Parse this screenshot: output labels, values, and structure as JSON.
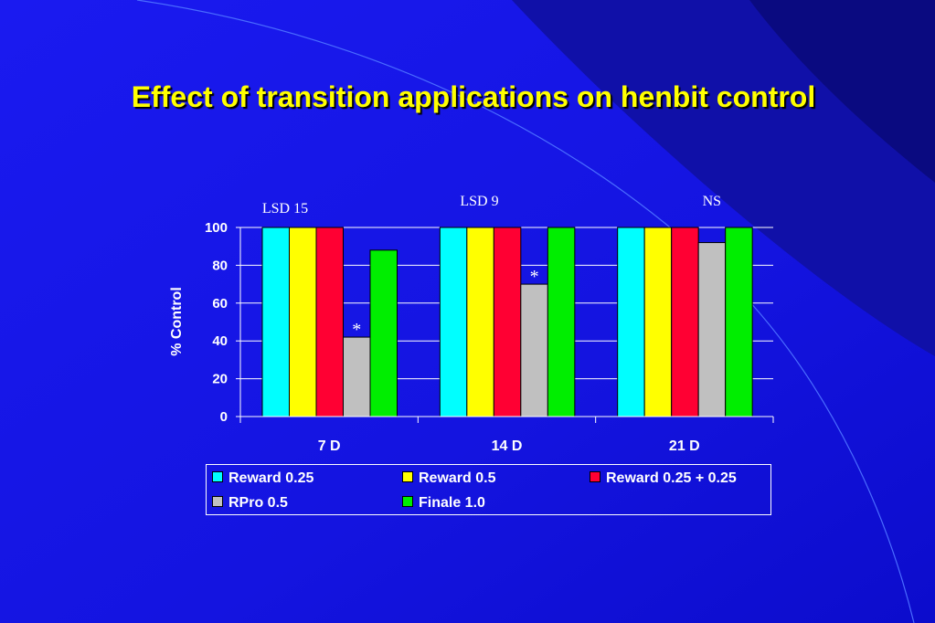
{
  "slide": {
    "title": "Effect of transition applications on henbit control"
  },
  "chart_data": {
    "type": "bar",
    "categories": [
      "7 D",
      "14 D",
      "21 D"
    ],
    "series": [
      {
        "name": "Reward 0.25",
        "color": "#00ffff",
        "values": [
          100,
          100,
          100
        ]
      },
      {
        "name": "Reward 0.5",
        "color": "#ffff00",
        "values": [
          100,
          100,
          100
        ]
      },
      {
        "name": "Reward 0.25 + 0.25",
        "color": "#ff0033",
        "values": [
          100,
          100,
          100
        ]
      },
      {
        "name": "RPro 0.5",
        "color": "#c0c0c0",
        "values": [
          42,
          70,
          92
        ]
      },
      {
        "name": "Finale 1.0",
        "color": "#00ee00",
        "values": [
          88,
          100,
          100
        ]
      }
    ],
    "title": "",
    "xlabel": "",
    "ylabel": "% Control",
    "ylim": [
      0,
      100
    ],
    "yticks": [
      0,
      20,
      40,
      60,
      80,
      100
    ],
    "grid": true,
    "legend_position": "bottom",
    "group_annotations": [
      "LSD 15",
      "LSD 9",
      "NS"
    ],
    "bar_annotations": [
      {
        "category": "7 D",
        "series": "RPro 0.5",
        "text": "*"
      },
      {
        "category": "14 D",
        "series": "RPro 0.5",
        "text": "*"
      }
    ]
  }
}
